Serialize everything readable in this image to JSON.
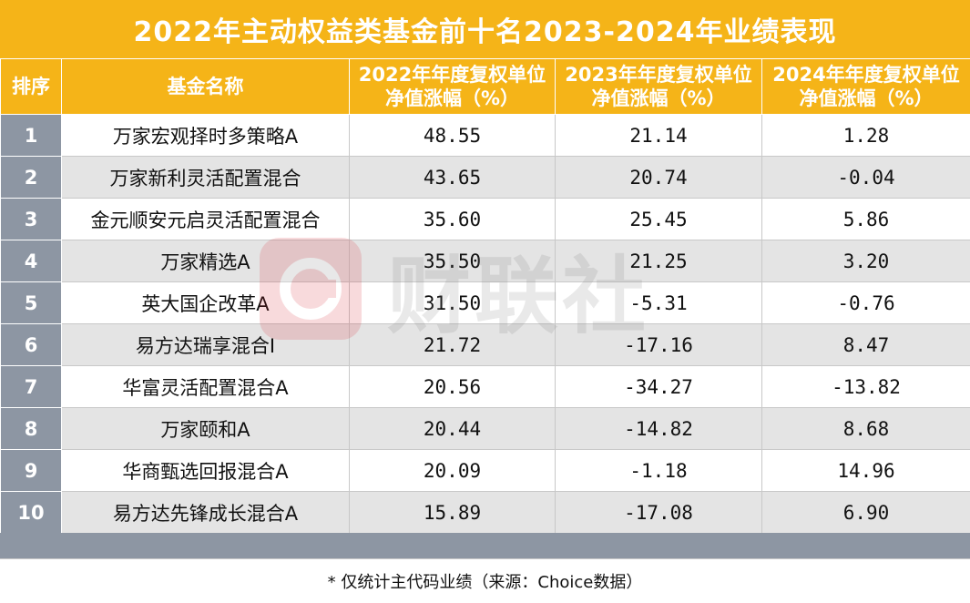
{
  "title": "2022年主动权益类基金前十名2023-2024年业绩表现",
  "headers": {
    "rank": "排序",
    "name": "基金名称",
    "y2022": "2022年年度复权单位净值涨幅（%）",
    "y2023": "2023年年度复权单位净值涨幅（%）",
    "y2024": "2024年年度复权单位净值涨幅（%）"
  },
  "rows": [
    {
      "rank": "1",
      "name": "万家宏观择时多策略A",
      "y2022": "48.55",
      "y2023": "21.14",
      "y2024": "1.28"
    },
    {
      "rank": "2",
      "name": "万家新利灵活配置混合",
      "y2022": "43.65",
      "y2023": "20.74",
      "y2024": "-0.04"
    },
    {
      "rank": "3",
      "name": "金元顺安元启灵活配置混合",
      "y2022": "35.60",
      "y2023": "25.45",
      "y2024": "5.86"
    },
    {
      "rank": "4",
      "name": "万家精选A",
      "y2022": "35.50",
      "y2023": "21.25",
      "y2024": "3.20"
    },
    {
      "rank": "5",
      "name": "英大国企改革A",
      "y2022": "31.50",
      "y2023": "-5.31",
      "y2024": "-0.76"
    },
    {
      "rank": "6",
      "name": "易方达瑞享混合I",
      "y2022": "21.72",
      "y2023": "-17.16",
      "y2024": "8.47"
    },
    {
      "rank": "7",
      "name": "华富灵活配置混合A",
      "y2022": "20.56",
      "y2023": "-34.27",
      "y2024": "-13.82"
    },
    {
      "rank": "8",
      "name": "万家颐和A",
      "y2022": "20.44",
      "y2023": "-14.82",
      "y2024": "8.68"
    },
    {
      "rank": "9",
      "name": "华商甄选回报混合A",
      "y2022": "20.09",
      "y2023": "-1.18",
      "y2024": "14.96"
    },
    {
      "rank": "10",
      "name": "易方达先锋成长混合A",
      "y2022": "15.89",
      "y2023": "-17.08",
      "y2024": "6.90"
    }
  ],
  "note": "* 仅统计主代码业绩（来源：Choice数据）",
  "watermark": {
    "text": "财联社",
    "icon": "cls-logo-icon"
  },
  "colors": {
    "header": "#f5b418",
    "rank_column": "#8d96a3",
    "stripe": "#e4e4e4"
  }
}
